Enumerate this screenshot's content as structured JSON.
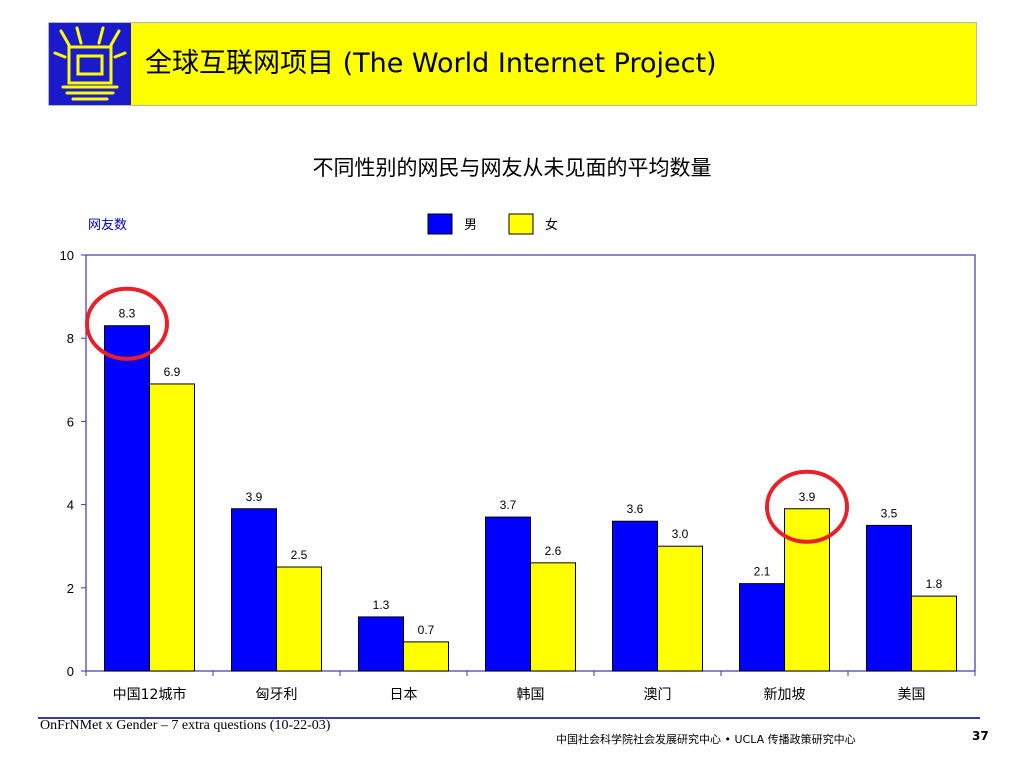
{
  "header": {
    "title": "全球互联网项目 (The World Internet Project)",
    "logo_icon": "window-logo-icon",
    "bg_color": "#ffff00",
    "logo_color": "#1a1acc"
  },
  "chart_data": {
    "type": "bar",
    "title": "不同性别的网民与网友从未见面的平均数量",
    "ylabel": "网友数",
    "xlabel": "",
    "categories": [
      "中国12城市",
      "匈牙利",
      "日本",
      "韩国",
      "澳门",
      "新加坡",
      "美国"
    ],
    "series": [
      {
        "name": "男",
        "color": "#0000ff",
        "values": [
          8.3,
          3.9,
          1.3,
          3.7,
          3.6,
          2.1,
          3.5
        ],
        "labels": [
          "8.3",
          "3.9",
          "1.3",
          "3.7",
          "3.6",
          "2.1",
          "3.5"
        ]
      },
      {
        "name": "女",
        "color": "#ffff00",
        "values": [
          6.9,
          2.5,
          0.7,
          2.6,
          3.0,
          3.9,
          1.8
        ],
        "labels": [
          "6.9",
          "2.5",
          "0.7",
          "2.6",
          "3.0",
          "3.9",
          "1.8"
        ]
      }
    ],
    "ylim": [
      0,
      10
    ],
    "yticks": [
      "0",
      "2",
      "4",
      "6",
      "8",
      "10"
    ],
    "grid": false,
    "legend": "top-center",
    "highlights": [
      {
        "category": 0,
        "series": 0,
        "color": "#e8202a"
      },
      {
        "category": 5,
        "series": 1,
        "color": "#e8202a"
      }
    ]
  },
  "footer": {
    "left": "OnFrNMet x Gender – 7 extra questions (10-22-03)",
    "right": "中国社会科学院社会发展研究中心 • UCLA 传播政策研究中心",
    "page": "37"
  }
}
